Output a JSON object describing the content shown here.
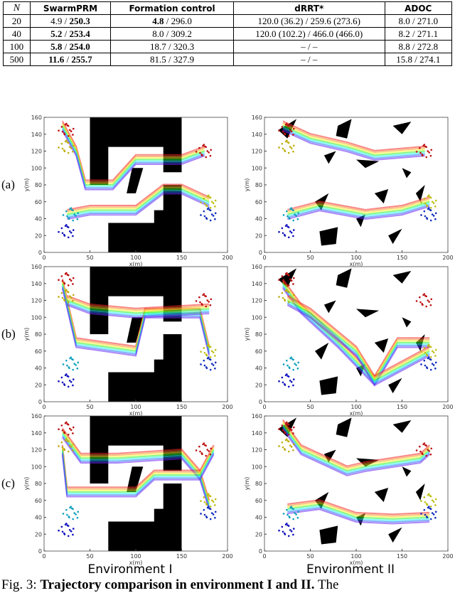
{
  "table": {
    "header": [
      "N",
      "SwarmPRM",
      "Formation control",
      "dRRT*",
      "ADOC"
    ],
    "rows": [
      {
        "n": "20",
        "cells": [
          {
            "parts": [
              "4.9",
              "250.3"
            ],
            "bold": [
              false,
              true
            ]
          },
          {
            "parts": [
              "4.8",
              "296.0"
            ],
            "bold": [
              true,
              false
            ]
          },
          {
            "parts": [
              "120.0 (36.2)",
              "259.6 (273.6)"
            ],
            "bold": [
              false,
              false
            ]
          },
          {
            "parts": [
              "8.0",
              "271.0"
            ],
            "bold": [
              false,
              false
            ]
          }
        ]
      },
      {
        "n": "40",
        "cells": [
          {
            "parts": [
              "5.2",
              "253.4"
            ],
            "bold": [
              true,
              true
            ]
          },
          {
            "parts": [
              "8.0",
              "309.2"
            ],
            "bold": [
              false,
              false
            ]
          },
          {
            "parts": [
              "120.0 (102.2)",
              "466.0 (466.0)"
            ],
            "bold": [
              false,
              false
            ]
          },
          {
            "parts": [
              "8.2",
              "271.1"
            ],
            "bold": [
              false,
              false
            ]
          }
        ]
      },
      {
        "n": "100",
        "cells": [
          {
            "parts": [
              "5.8",
              "254.0"
            ],
            "bold": [
              true,
              true
            ]
          },
          {
            "parts": [
              "18.7",
              "320.3"
            ],
            "bold": [
              false,
              false
            ]
          },
          {
            "parts": [
              "–",
              "–"
            ],
            "bold": [
              false,
              false
            ]
          },
          {
            "parts": [
              "8.8",
              "272.8"
            ],
            "bold": [
              false,
              false
            ]
          }
        ]
      },
      {
        "n": "500",
        "cells": [
          {
            "parts": [
              "11.6",
              "255.7"
            ],
            "bold": [
              true,
              true
            ]
          },
          {
            "parts": [
              "81.5",
              "327.9"
            ],
            "bold": [
              false,
              false
            ]
          },
          {
            "parts": [
              "–",
              "–"
            ],
            "bold": [
              false,
              false
            ]
          },
          {
            "parts": [
              "15.8",
              "274.1"
            ],
            "bold": [
              false,
              false
            ]
          }
        ]
      }
    ]
  },
  "plots": {
    "xlabel": "x(m)",
    "ylabel": "y(m)",
    "xlim": [
      0,
      200
    ],
    "ylim": [
      0,
      160
    ],
    "xticks": [
      0,
      50,
      100,
      150,
      200
    ],
    "yticks": [
      0,
      20,
      40,
      60,
      80,
      100,
      120,
      140,
      160
    ],
    "row_labels": [
      "(a)",
      "(b)",
      "(c)"
    ],
    "column_labels": [
      "Environment I",
      "Environment II"
    ]
  },
  "caption": {
    "label": "Fig. 3:",
    "bold_text": "Trajectory comparison in environment I and II.",
    "text": "The"
  }
}
